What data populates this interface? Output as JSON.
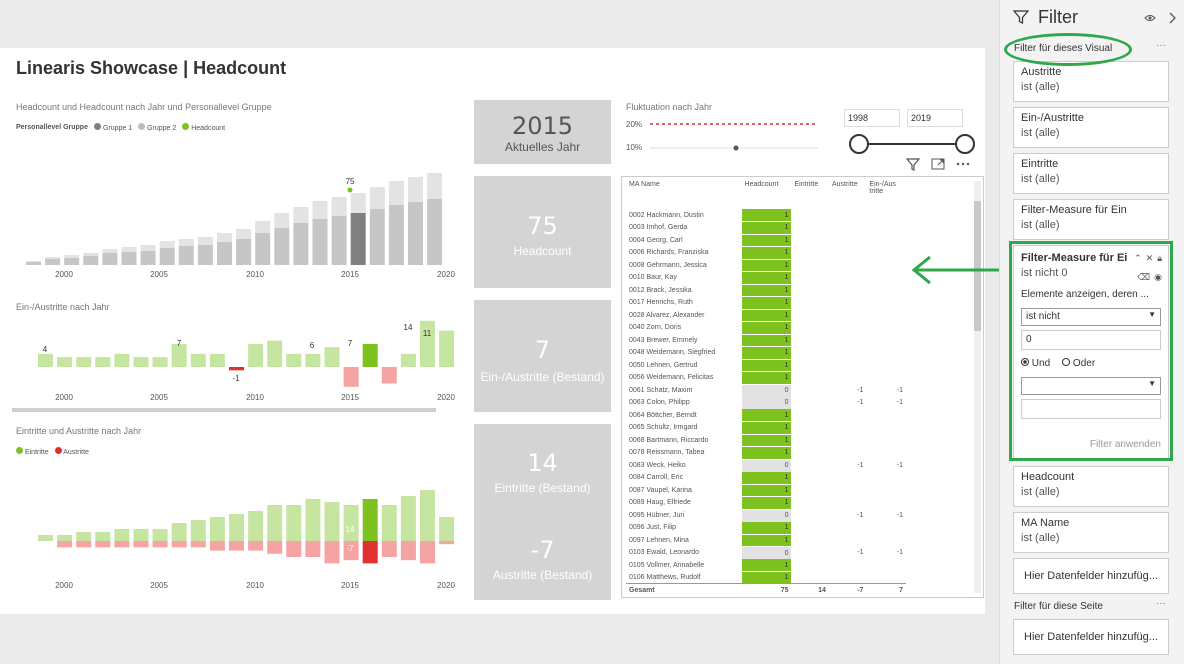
{
  "report_title": "Linearis Showcase | Headcount",
  "chart1": {
    "title": "Headcount und Headcount nach Jahr und Personallevel Gruppe",
    "legend_title": "Personallevel Gruppe",
    "legend": [
      "Gruppe 1",
      "Gruppe 2",
      "Headcount"
    ],
    "x_ticks": [
      "2000",
      "2005",
      "2010",
      "2015",
      "2020"
    ],
    "highlight_label": "75"
  },
  "chart2": {
    "title": "Ein-/Austritte nach Jahr",
    "labels": [
      "4",
      "7",
      "-1",
      "6",
      "-6",
      "7",
      "-5",
      "14",
      "11"
    ],
    "x_ticks": [
      "2000",
      "2005",
      "2010",
      "2015",
      "2020"
    ]
  },
  "chart3": {
    "title": "Eintritte und Austritte nach Jahr",
    "legend": [
      "Eintritte",
      "Austritte"
    ],
    "labels": [
      "14",
      "-7"
    ],
    "x_ticks": [
      "2000",
      "2005",
      "2010",
      "2015",
      "2020"
    ]
  },
  "kpis": {
    "year": {
      "value": "2015",
      "label": "Aktuelles Jahr"
    },
    "headcount": {
      "value": "75",
      "label": "Headcount"
    },
    "einaus": {
      "value": "7",
      "label": "Ein-/Austritte (Bestand)"
    },
    "eintritte": {
      "value": "14",
      "label": "Eintritte (Bestand)"
    },
    "austritte": {
      "value": "-7",
      "label": "Austritte (Bestand)"
    }
  },
  "fluktuation": {
    "title": "Fluktuation nach Jahr",
    "y_ticks": [
      "20%",
      "10%"
    ]
  },
  "slicer": {
    "from": "1998",
    "to": "2019"
  },
  "table": {
    "headers": [
      "MA Name",
      "Headcount",
      "Eintritte",
      "Austritte",
      "Ein-/Aus tritte"
    ],
    "rows": [
      [
        "0002 Hackmann, Dustin",
        "1",
        "",
        "",
        ""
      ],
      [
        "0003 Imhof, Gerda",
        "1",
        "",
        "",
        ""
      ],
      [
        "0004 Georg, Carl",
        "1",
        "",
        "",
        ""
      ],
      [
        "0006 Richards, Franziska",
        "1",
        "",
        "",
        ""
      ],
      [
        "0008 Gehrmann, Jessica",
        "1",
        "",
        "",
        ""
      ],
      [
        "0010 Baur, Kay",
        "1",
        "",
        "",
        ""
      ],
      [
        "0012 Brack, Jessika",
        "1",
        "",
        "",
        ""
      ],
      [
        "0017 Henrichs, Ruth",
        "1",
        "",
        "",
        ""
      ],
      [
        "0028 Alvarez, Alexander",
        "1",
        "",
        "",
        ""
      ],
      [
        "0040 Zorn, Doris",
        "1",
        "",
        "",
        ""
      ],
      [
        "0043 Brewer, Emmely",
        "1",
        "",
        "",
        ""
      ],
      [
        "0048 Weidemann, Siegfried",
        "1",
        "",
        "",
        ""
      ],
      [
        "0050 Lehnen, Gertrud",
        "1",
        "",
        "",
        ""
      ],
      [
        "0056 Weidemann, Felicitas",
        "1",
        "",
        "",
        ""
      ],
      [
        "0061 Schatz, Maxim",
        "0",
        "",
        "-1",
        "-1"
      ],
      [
        "0063 Colon, Philipp",
        "0",
        "",
        "-1",
        "-1"
      ],
      [
        "0064 Böttcher, Berndt",
        "1",
        "",
        "",
        ""
      ],
      [
        "0065 Schultz, Irmgard",
        "1",
        "",
        "",
        ""
      ],
      [
        "0068 Bartmann, Riccardo",
        "1",
        "",
        "",
        ""
      ],
      [
        "0078 Reissmann, Tabea",
        "1",
        "",
        "",
        ""
      ],
      [
        "0083 Weck, Heiko",
        "0",
        "",
        "-1",
        "-1"
      ],
      [
        "0084 Carroll, Eric",
        "1",
        "",
        "",
        ""
      ],
      [
        "0087 Vaupel, Karina",
        "1",
        "",
        "",
        ""
      ],
      [
        "0089 Haug, Elfriede",
        "1",
        "",
        "",
        ""
      ],
      [
        "0095 Hübner, Juri",
        "0",
        "",
        "-1",
        "-1"
      ],
      [
        "0096 Just, Filip",
        "1",
        "",
        "",
        ""
      ],
      [
        "0097 Lehnen, Mina",
        "1",
        "",
        "",
        ""
      ],
      [
        "0103 Ewald, Leonardo",
        "0",
        "",
        "-1",
        "-1"
      ],
      [
        "0105 Vollmer, Annabelle",
        "1",
        "",
        "",
        ""
      ],
      [
        "0106 Matthews, Rudolf",
        "1",
        "",
        "",
        ""
      ]
    ],
    "total": [
      "Gesamt",
      "75",
      "14",
      "-7",
      "7"
    ]
  },
  "filter": {
    "pane_title": "Filter",
    "section_visual": "Filter für dieses Visual",
    "section_page": "Filter für diese Seite",
    "cards": [
      {
        "name": "Austritte",
        "state": "ist (alle)"
      },
      {
        "name": "Ein-/Austritte",
        "state": "ist (alle)"
      },
      {
        "name": "Eintritte",
        "state": "ist (alle)"
      },
      {
        "name": "Filter-Measure für Ein",
        "state": "ist (alle)"
      }
    ],
    "expanded": {
      "name": "Filter-Measure für Ei",
      "state": "ist nicht 0",
      "show_label": "Elemente anzeigen, deren ...",
      "operator": "ist nicht",
      "value": "0",
      "and_label": "Und",
      "or_label": "Oder",
      "operator2": "",
      "value2": "",
      "apply_label": "Filter anwenden"
    },
    "cards2": [
      {
        "name": "Headcount",
        "state": "ist (alle)"
      },
      {
        "name": "MA Name",
        "state": "ist (alle)"
      }
    ],
    "add_field": "Hier Datenfelder hinzufüg...",
    "add_field_page": "Hier Datenfelder hinzufüg..."
  },
  "colors": {
    "green": "#7dc21e",
    "light_green": "#c5e5a0",
    "red": "#e03030",
    "light_red": "#f5a3a3",
    "gray_dark": "#808080",
    "gray_light": "#c8c8c8",
    "annotation": "#2ea84a"
  }
}
